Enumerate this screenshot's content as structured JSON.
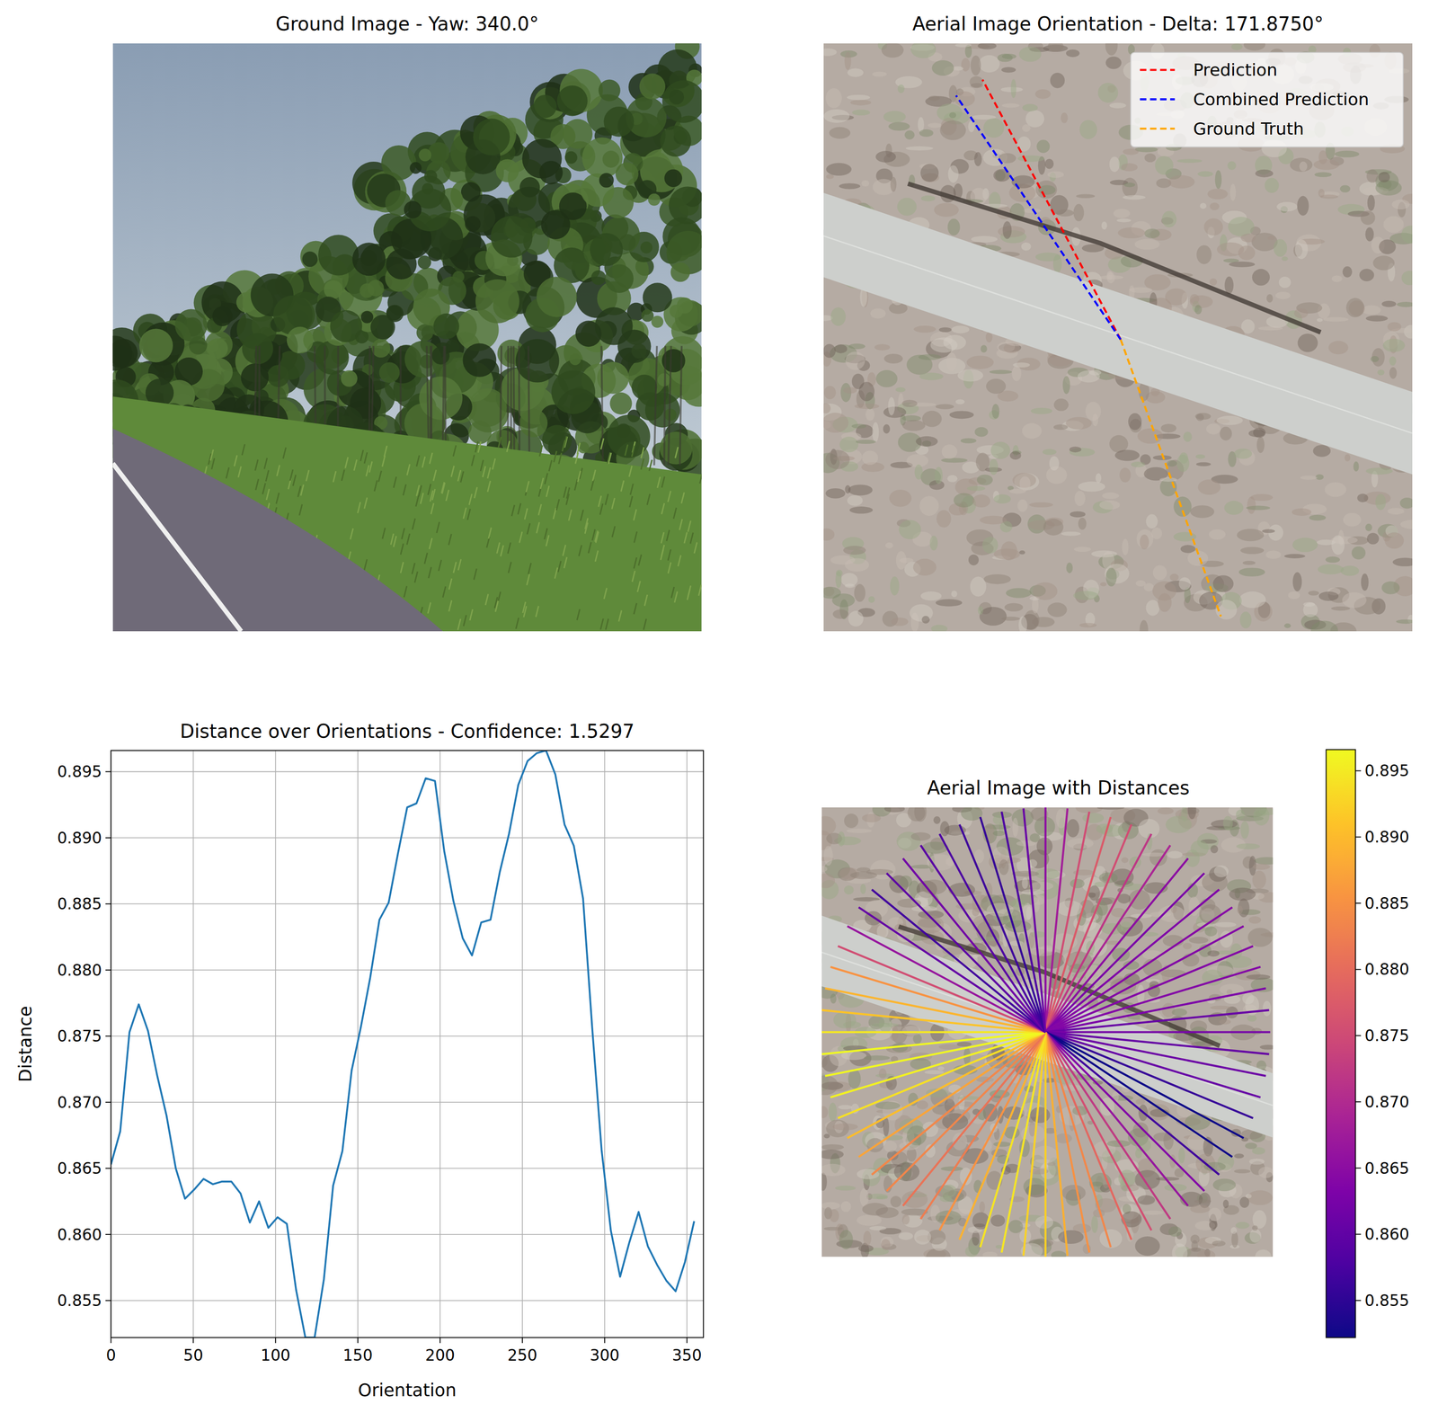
{
  "chart_data": [
    {
      "type": "image",
      "title": "Ground Image - Yaw: 340.0°"
    },
    {
      "type": "orientation",
      "title": "Aerial Image Orientation - Delta: 171.8750°",
      "legend": "upper right",
      "series": [
        {
          "name": "Prediction",
          "color": "#ff0000",
          "line_style": "dashed",
          "values": [
            332.0
          ]
        },
        {
          "name": "Combined Prediction",
          "color": "#0000ff",
          "line_style": "dashed",
          "values": [
            326.0
          ]
        },
        {
          "name": "Ground Truth",
          "color": "#ffa500",
          "line_style": "dashed",
          "values": [
            160.1
          ]
        }
      ]
    },
    {
      "type": "line",
      "title": "Distance over Orientations - Confidence: 1.5297",
      "x_label": "Orientation",
      "y_label": "Distance",
      "color": "#1f77b4",
      "grid": true,
      "x": [
        0,
        5.625,
        11.25,
        16.875,
        22.5,
        28.125,
        33.75,
        39.375,
        45,
        50.625,
        56.25,
        61.875,
        67.5,
        73.125,
        78.75,
        84.375,
        90,
        95.625,
        101.25,
        106.875,
        112.5,
        118.125,
        123.75,
        129.375,
        135,
        140.625,
        146.25,
        151.875,
        157.5,
        163.125,
        168.75,
        174.375,
        180,
        185.625,
        191.25,
        196.875,
        202.5,
        208.125,
        213.75,
        219.375,
        225,
        230.625,
        236.25,
        241.875,
        247.5,
        253.125,
        258.75,
        264.375,
        270,
        275.625,
        281.25,
        286.875,
        292.5,
        298.125,
        303.75,
        309.375,
        315,
        320.625,
        326.25,
        331.875,
        337.5,
        343.125,
        348.75,
        354.375
      ],
      "values": [
        0.8653,
        0.8678,
        0.8753,
        0.8774,
        0.8754,
        0.872,
        0.869,
        0.865,
        0.8627,
        0.8634,
        0.8642,
        0.8638,
        0.864,
        0.864,
        0.8631,
        0.8609,
        0.8625,
        0.8605,
        0.8613,
        0.8608,
        0.8558,
        0.8522,
        0.8522,
        0.8566,
        0.8637,
        0.8663,
        0.8724,
        0.8757,
        0.8794,
        0.8838,
        0.8851,
        0.8888,
        0.8923,
        0.8926,
        0.8945,
        0.8943,
        0.889,
        0.8852,
        0.8824,
        0.8811,
        0.8836,
        0.8838,
        0.8874,
        0.8903,
        0.894,
        0.8958,
        0.8964,
        0.8966,
        0.8948,
        0.891,
        0.8894,
        0.8854,
        0.8755,
        0.8664,
        0.8603,
        0.8568,
        0.8594,
        0.8617,
        0.8591,
        0.8577,
        0.8565,
        0.8557,
        0.8579,
        0.861
      ],
      "xlim": [
        0,
        360
      ],
      "ylim": [
        0.8522,
        0.8966
      ],
      "xticks": [
        0,
        50,
        100,
        150,
        200,
        250,
        300,
        350
      ],
      "yticks": [
        0.855,
        {
          "value": 0.86,
          "label": "0.860"
        },
        0.865,
        {
          "value": 0.87,
          "label": "0.870"
        },
        0.875,
        {
          "value": 0.88,
          "label": "0.880"
        },
        0.885,
        {
          "value": 0.89,
          "label": "0.890"
        },
        0.895
      ]
    },
    {
      "type": "polar_rays",
      "title": "Aerial Image with Distances",
      "x": [
        0,
        5.625,
        11.25,
        16.875,
        22.5,
        28.125,
        33.75,
        39.375,
        45,
        50.625,
        56.25,
        61.875,
        67.5,
        73.125,
        78.75,
        84.375,
        90,
        95.625,
        101.25,
        106.875,
        112.5,
        118.125,
        123.75,
        129.375,
        135,
        140.625,
        146.25,
        151.875,
        157.5,
        163.125,
        168.75,
        174.375,
        180,
        185.625,
        191.25,
        196.875,
        202.5,
        208.125,
        213.75,
        219.375,
        225,
        230.625,
        236.25,
        241.875,
        247.5,
        253.125,
        258.75,
        264.375,
        270,
        275.625,
        281.25,
        286.875,
        292.5,
        298.125,
        303.75,
        309.375,
        315,
        320.625,
        326.25,
        331.875,
        337.5,
        343.125,
        348.75,
        354.375
      ],
      "values": [
        0.8653,
        0.8678,
        0.8753,
        0.8774,
        0.8754,
        0.872,
        0.869,
        0.865,
        0.8627,
        0.8634,
        0.8642,
        0.8638,
        0.864,
        0.864,
        0.8631,
        0.8609,
        0.8625,
        0.8605,
        0.8613,
        0.8608,
        0.8558,
        0.8522,
        0.8522,
        0.8566,
        0.8637,
        0.8663,
        0.8724,
        0.8757,
        0.8794,
        0.8838,
        0.8851,
        0.8888,
        0.8923,
        0.8926,
        0.8945,
        0.8943,
        0.889,
        0.8852,
        0.8824,
        0.8811,
        0.8836,
        0.8838,
        0.8874,
        0.8903,
        0.894,
        0.8958,
        0.8964,
        0.8966,
        0.8948,
        0.891,
        0.8894,
        0.8854,
        0.8755,
        0.8664,
        0.8603,
        0.8568,
        0.8594,
        0.8617,
        0.8591,
        0.8577,
        0.8565,
        0.8557,
        0.8579,
        0.861
      ],
      "colorbar": {
        "range": [
          0.8522,
          0.8966
        ],
        "ticks": [
          0.855,
          {
            "value": 0.86,
            "label": "0.860"
          },
          0.865,
          {
            "value": 0.87,
            "label": "0.870"
          },
          0.875,
          {
            "value": 0.88,
            "label": "0.880"
          },
          0.885,
          {
            "value": 0.89,
            "label": "0.890"
          },
          0.895
        ]
      }
    }
  ]
}
